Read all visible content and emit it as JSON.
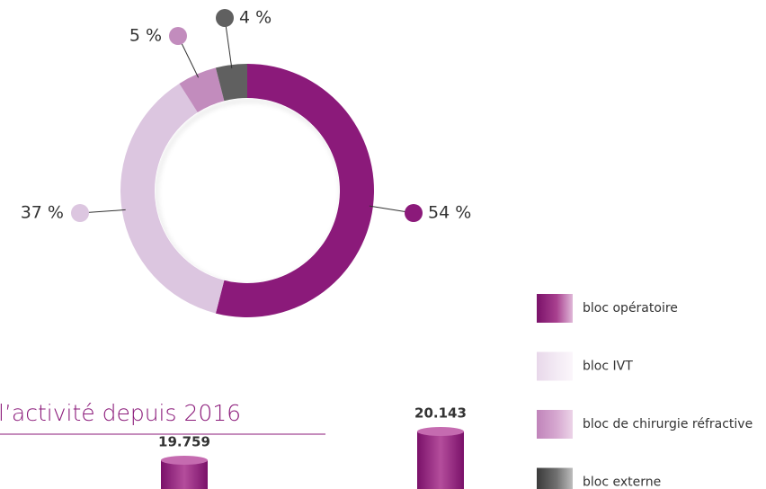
{
  "chart_data": [
    {
      "type": "donut",
      "categories": [
        "bloc opératoire",
        "bloc IVT",
        "bloc de chirurgie réfractive",
        "bloc externe"
      ],
      "values": [
        54,
        37,
        5,
        4
      ],
      "value_labels": [
        "54 %",
        "37 %",
        "5 %",
        "4 %"
      ],
      "colors": [
        "#8b1a7a",
        "#dcc6e0",
        "#c28cbd",
        "#606060"
      ]
    },
    {
      "type": "bar",
      "title": "l’activité depuis 2016",
      "categories": [
        null,
        null
      ],
      "values": [
        19759,
        20143
      ],
      "value_labels": [
        "19.759",
        "20.143"
      ],
      "color": "#8b1a7a"
    }
  ]
}
